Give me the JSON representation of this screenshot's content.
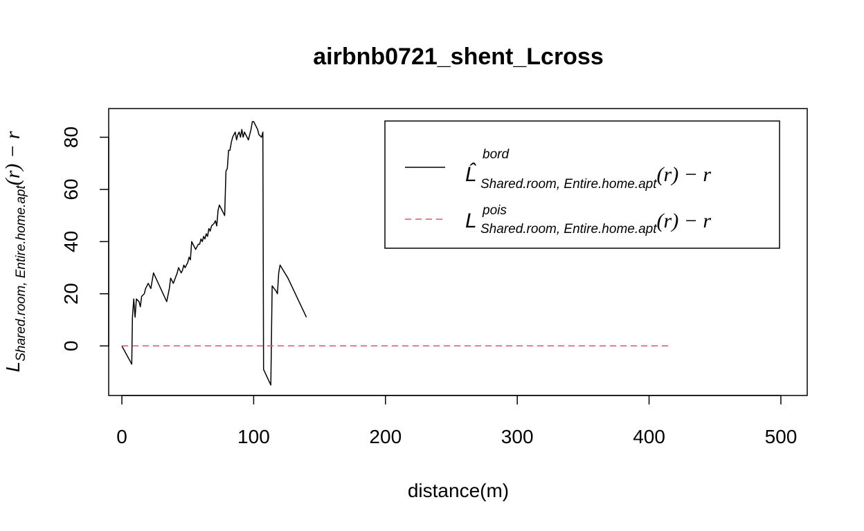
{
  "chart_data": {
    "type": "line",
    "title": "airbnb0721_shent_Lcross",
    "xlabel": "distance(m)",
    "ylabel": {
      "main": "L",
      "sub": "Shared.room, Entire.home.apt",
      "rest": "(r) − r"
    },
    "xlim": [
      -10,
      520
    ],
    "ylim": [
      -19,
      91
    ],
    "x_ticks": [
      0,
      100,
      200,
      300,
      400,
      500
    ],
    "y_ticks": [
      0,
      20,
      40,
      60,
      80
    ],
    "grid": false,
    "legend_position": "top-right",
    "series": [
      {
        "name": "bord",
        "legend": {
          "main": "L̂",
          "sup": "bord",
          "sub": "Shared.room, Entire.home.apt",
          "rest": "(r) − r"
        },
        "color": "#000000",
        "dash": "solid",
        "points": [
          [
            0,
            0
          ],
          [
            7.5,
            -7
          ],
          [
            8,
            11
          ],
          [
            9,
            18
          ],
          [
            10,
            11
          ],
          [
            11,
            18
          ],
          [
            13,
            17
          ],
          [
            14,
            15
          ],
          [
            15,
            19
          ],
          [
            17,
            20
          ],
          [
            18,
            22
          ],
          [
            20,
            24
          ],
          [
            22,
            22
          ],
          [
            24,
            28
          ],
          [
            34,
            17
          ],
          [
            36,
            22
          ],
          [
            37,
            26
          ],
          [
            39,
            24
          ],
          [
            42,
            28
          ],
          [
            43,
            30
          ],
          [
            45,
            28
          ],
          [
            46,
            29
          ],
          [
            47,
            31
          ],
          [
            48,
            30
          ],
          [
            50,
            32
          ],
          [
            51,
            34
          ],
          [
            52,
            33
          ],
          [
            53,
            40
          ],
          [
            55,
            38
          ],
          [
            56,
            37
          ],
          [
            58,
            39
          ],
          [
            59,
            39
          ],
          [
            60,
            41
          ],
          [
            61,
            40
          ],
          [
            62,
            42
          ],
          [
            63,
            41
          ],
          [
            64,
            43
          ],
          [
            65,
            42
          ],
          [
            66,
            45
          ],
          [
            67,
            44
          ],
          [
            68,
            46
          ],
          [
            70,
            47
          ],
          [
            71,
            48
          ],
          [
            72,
            46
          ],
          [
            73,
            52
          ],
          [
            74,
            54
          ],
          [
            76,
            52
          ],
          [
            78,
            50
          ],
          [
            79,
            67
          ],
          [
            80,
            68
          ],
          [
            81,
            75
          ],
          [
            82,
            75
          ],
          [
            83,
            78
          ],
          [
            84,
            80
          ],
          [
            85,
            81
          ],
          [
            86,
            82
          ],
          [
            87,
            79
          ],
          [
            88,
            81
          ],
          [
            89,
            82
          ],
          [
            90,
            80
          ],
          [
            91,
            83
          ],
          [
            92,
            80
          ],
          [
            93,
            82
          ],
          [
            95,
            80
          ],
          [
            96,
            79
          ],
          [
            97,
            81
          ],
          [
            98,
            83
          ],
          [
            99,
            86
          ],
          [
            100,
            86
          ],
          [
            101,
            85
          ],
          [
            103,
            83
          ],
          [
            104,
            81
          ],
          [
            106,
            80
          ],
          [
            107,
            82
          ],
          [
            107.5,
            -9
          ],
          [
            113,
            -15
          ],
          [
            114,
            23
          ],
          [
            117,
            21
          ],
          [
            118,
            20
          ],
          [
            119,
            28
          ],
          [
            120,
            31
          ],
          [
            126,
            26
          ],
          [
            140,
            11
          ]
        ]
      },
      {
        "name": "pois",
        "legend": {
          "main": "L",
          "sup": "pois",
          "sub": "Shared.room, Entire.home.apt",
          "rest": "(r) − r"
        },
        "color": "#DF536B",
        "dash": "dashed",
        "points": [
          [
            0,
            0
          ],
          [
            416,
            0
          ]
        ]
      }
    ]
  }
}
